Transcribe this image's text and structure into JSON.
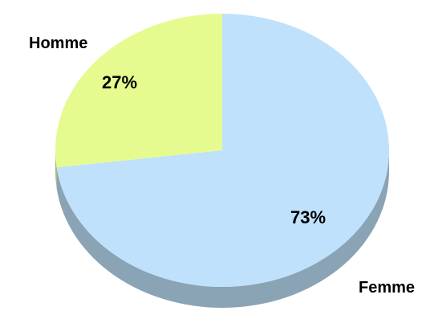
{
  "chart_data": {
    "type": "pie",
    "style": "3d",
    "slices": [
      {
        "label": "Femme",
        "value": 73,
        "display": "73%",
        "color": "#bfe1fb",
        "side_color": "#8aa3b5"
      },
      {
        "label": "Homme",
        "value": 27,
        "display": "27%",
        "color": "#e6fb8f",
        "side_color": "#a7b868"
      }
    ],
    "start_angle_deg": 0,
    "direction": "clockwise",
    "legend": "none"
  }
}
